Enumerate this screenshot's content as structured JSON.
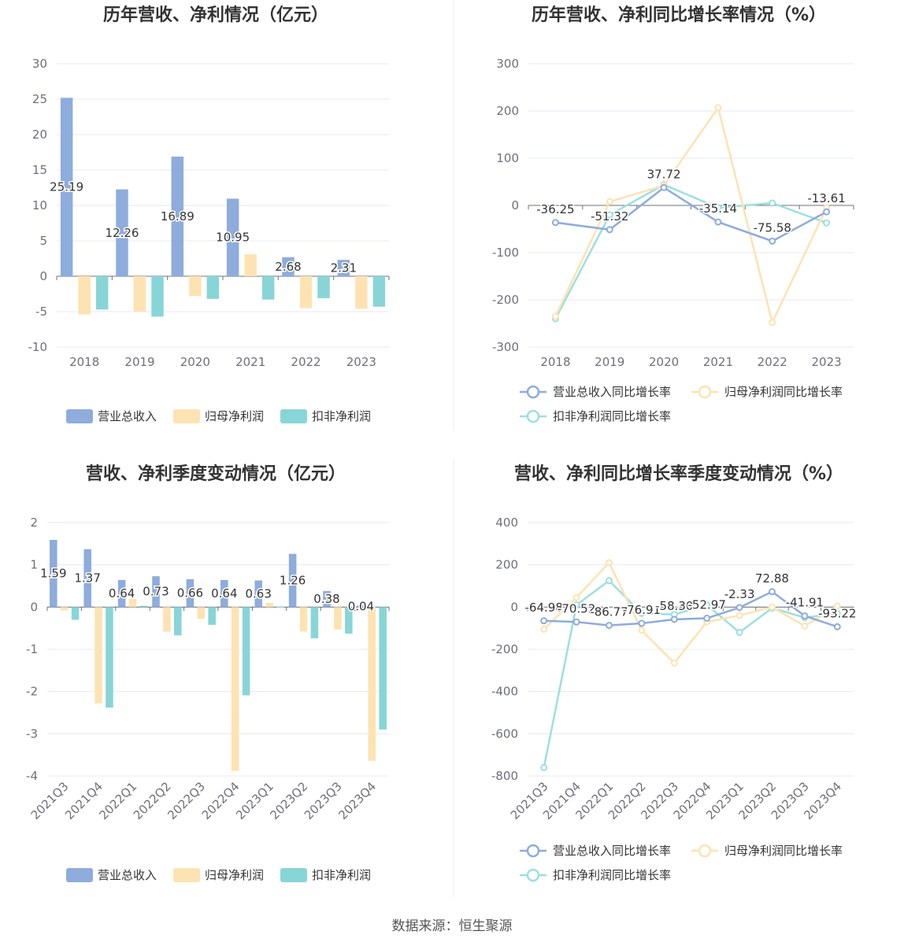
{
  "source_text": "数据来源：恒生聚源",
  "colors": {
    "revenue": "#8eacdc",
    "net_profit": "#fde3b2",
    "deducted_profit": "#88d5d8",
    "revenue_line": "#8eacdc",
    "net_profit_line": "#fde3b2",
    "deducted_line": "#9ddfe0",
    "grid": "#e6e9f2",
    "axis": "#6e7079"
  },
  "chart_data": [
    {
      "id": "annual-amounts",
      "type": "bar",
      "title": "历年营收、净利情况（亿元）",
      "categories": [
        "2018",
        "2019",
        "2020",
        "2021",
        "2022",
        "2023"
      ],
      "ylim": [
        -10,
        30
      ],
      "yticks": [
        30,
        25,
        20,
        15,
        10,
        5,
        0,
        -5,
        -10
      ],
      "series": [
        {
          "name": "营业总收入",
          "values": [
            25.19,
            12.26,
            16.89,
            10.95,
            2.68,
            2.31
          ],
          "labels": [
            "25.19",
            "12.26",
            "16.89",
            "10.95",
            "2.68",
            "2.31"
          ]
        },
        {
          "name": "归母净利润",
          "values": [
            -5.4,
            -5.0,
            -2.8,
            3.1,
            -4.5,
            -4.6
          ]
        },
        {
          "name": "扣非净利润",
          "values": [
            -4.7,
            -5.7,
            -3.2,
            -3.3,
            -3.1,
            -4.3
          ]
        }
      ],
      "grid": true,
      "legend_position": "bottom"
    },
    {
      "id": "annual-growth",
      "type": "line",
      "title": "历年营收、净利同比增长率情况（%）",
      "categories": [
        "2018",
        "2019",
        "2020",
        "2021",
        "2022",
        "2023"
      ],
      "ylim": [
        -300,
        300
      ],
      "yticks": [
        300,
        200,
        100,
        0,
        -100,
        -200,
        -300
      ],
      "series": [
        {
          "name": "营业总收入同比增长率",
          "values": [
            -36.25,
            -51.32,
            37.72,
            -35.14,
            -75.58,
            -13.61
          ],
          "labels": [
            "-36.25",
            "-51.32",
            "37.72",
            "-35.14",
            "-75.58",
            "-13.61"
          ]
        },
        {
          "name": "归母净利润同比增长率",
          "values": [
            -235,
            8,
            42,
            207,
            -248,
            -5
          ]
        },
        {
          "name": "扣非净利润同比增长率",
          "values": [
            -240,
            -20,
            44,
            -5,
            5,
            -37
          ]
        }
      ],
      "grid": true,
      "legend_position": "bottom"
    },
    {
      "id": "quarterly-amounts",
      "type": "bar",
      "title": "营收、净利季度变动情况（亿元）",
      "categories": [
        "2021Q3",
        "2021Q4",
        "2022Q1",
        "2022Q2",
        "2022Q3",
        "2022Q4",
        "2023Q1",
        "2023Q2",
        "2023Q3",
        "2023Q4"
      ],
      "ylim": [
        -4,
        2
      ],
      "yticks": [
        2,
        1,
        0,
        -1,
        -2,
        -3,
        -4
      ],
      "series": [
        {
          "name": "营业总收入",
          "values": [
            1.59,
            1.37,
            0.64,
            0.73,
            0.66,
            0.64,
            0.63,
            1.26,
            0.38,
            0.04
          ],
          "labels": [
            "1.59",
            "1.37",
            "0.64",
            "0.73",
            "0.66",
            "0.64",
            "0.63",
            "1.26",
            "0.38",
            "0.04"
          ]
        },
        {
          "name": "归母净利润",
          "values": [
            -0.08,
            -2.28,
            0.19,
            -0.58,
            -0.28,
            -3.88,
            0.1,
            -0.58,
            -0.53,
            -3.64
          ]
        },
        {
          "name": "扣非净利润",
          "values": [
            -0.3,
            -2.38,
            0.03,
            -0.67,
            -0.42,
            -2.09,
            0.01,
            -0.74,
            -0.63,
            -2.9
          ]
        }
      ],
      "grid": true,
      "legend_position": "bottom"
    },
    {
      "id": "quarterly-growth",
      "type": "line",
      "title": "营收、净利同比增长率季度变动情况（%）",
      "categories": [
        "2021Q3",
        "2021Q4",
        "2022Q1",
        "2022Q2",
        "2022Q3",
        "2022Q4",
        "2023Q1",
        "2023Q2",
        "2023Q3",
        "2023Q4"
      ],
      "ylim": [
        -800,
        400
      ],
      "yticks": [
        400,
        200,
        0,
        -200,
        -400,
        -600,
        -800
      ],
      "series": [
        {
          "name": "营业总收入同比增长率",
          "values": [
            -64.98,
            -70.52,
            -86.77,
            -76.91,
            -58.3,
            -52.97,
            -2.33,
            72.88,
            -41.91,
            -93.22
          ],
          "labels": [
            "-64.98",
            "-70.52",
            "-86.77",
            "-76.91",
            "-58.30",
            "-52.97",
            "-2.33",
            "72.88",
            "-41.91",
            "-93.22"
          ]
        },
        {
          "name": "归母净利润同比增长率",
          "values": [
            -105,
            45,
            210,
            -110,
            -265,
            -70,
            -40,
            0,
            -90,
            5
          ]
        },
        {
          "name": "扣非净利润同比增长率",
          "values": [
            -760,
            10,
            125,
            -30,
            -35,
            10,
            -120,
            -5,
            -50,
            -30
          ]
        }
      ],
      "grid": true,
      "legend_position": "bottom"
    }
  ]
}
